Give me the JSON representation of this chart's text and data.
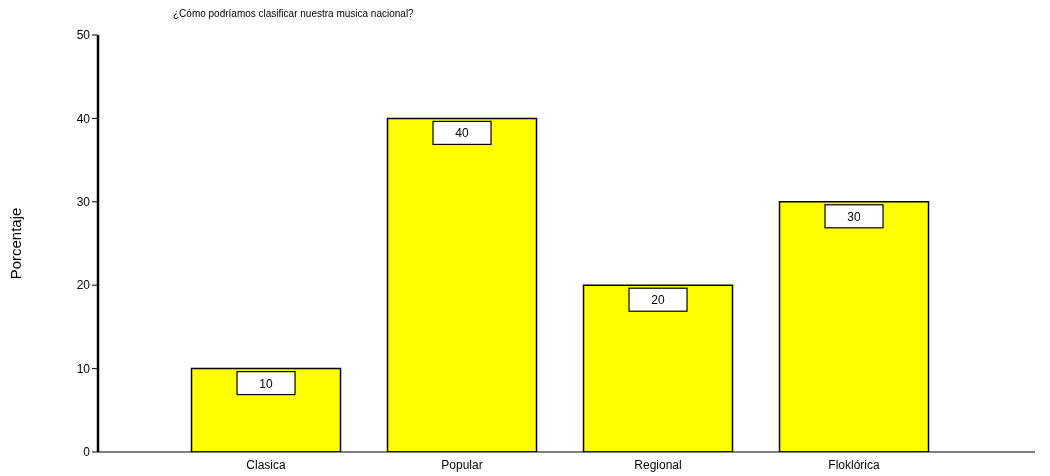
{
  "chart_data": {
    "type": "bar",
    "title": "¿Cómo podríamos clasificar nuestra musica nacional?",
    "ylabel": "Porcentaje",
    "categories": [
      "Clasica",
      "Popular",
      "Regional",
      "Floklórica"
    ],
    "values": [
      10,
      40,
      20,
      30
    ],
    "color": "#ffff00",
    "ylim": [
      0,
      50
    ],
    "yticks": [
      0,
      10,
      20,
      30,
      40,
      50
    ],
    "data_labels": true
  }
}
